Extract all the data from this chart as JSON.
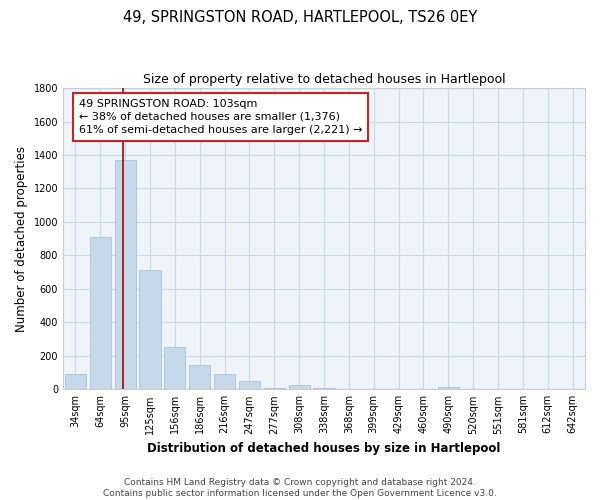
{
  "title": "49, SPRINGSTON ROAD, HARTLEPOOL, TS26 0EY",
  "subtitle": "Size of property relative to detached houses in Hartlepool",
  "xlabel": "Distribution of detached houses by size in Hartlepool",
  "ylabel": "Number of detached properties",
  "bar_labels": [
    "34sqm",
    "64sqm",
    "95sqm",
    "125sqm",
    "156sqm",
    "186sqm",
    "216sqm",
    "247sqm",
    "277sqm",
    "308sqm",
    "338sqm",
    "368sqm",
    "399sqm",
    "429sqm",
    "460sqm",
    "490sqm",
    "520sqm",
    "551sqm",
    "581sqm",
    "612sqm",
    "642sqm"
  ],
  "bar_values": [
    90,
    910,
    1370,
    710,
    250,
    145,
    90,
    52,
    5,
    28,
    5,
    0,
    0,
    0,
    0,
    15,
    0,
    0,
    0,
    0,
    0
  ],
  "bar_color": "#c5d9ea",
  "bar_edge_color": "#9bbdd4",
  "vline_x_index": 2,
  "vline_color": "#aa0000",
  "ylim": [
    0,
    1800
  ],
  "yticks": [
    0,
    200,
    400,
    600,
    800,
    1000,
    1200,
    1400,
    1600,
    1800
  ],
  "ann_line1": "49 SPRINGSTON ROAD: 103sqm",
  "ann_line2": "← 38% of detached houses are smaller (1,376)",
  "ann_line3": "61% of semi-detached houses are larger (2,221) →",
  "footer_line1": "Contains HM Land Registry data © Crown copyright and database right 2024.",
  "footer_line2": "Contains public sector information licensed under the Open Government Licence v3.0.",
  "background_color": "#ffffff",
  "plot_bg_color": "#eef4fa",
  "grid_color": "#c8d8e8",
  "title_fontsize": 10.5,
  "subtitle_fontsize": 9,
  "axis_label_fontsize": 8.5,
  "tick_fontsize": 7,
  "annotation_fontsize": 8,
  "footer_fontsize": 6.5
}
